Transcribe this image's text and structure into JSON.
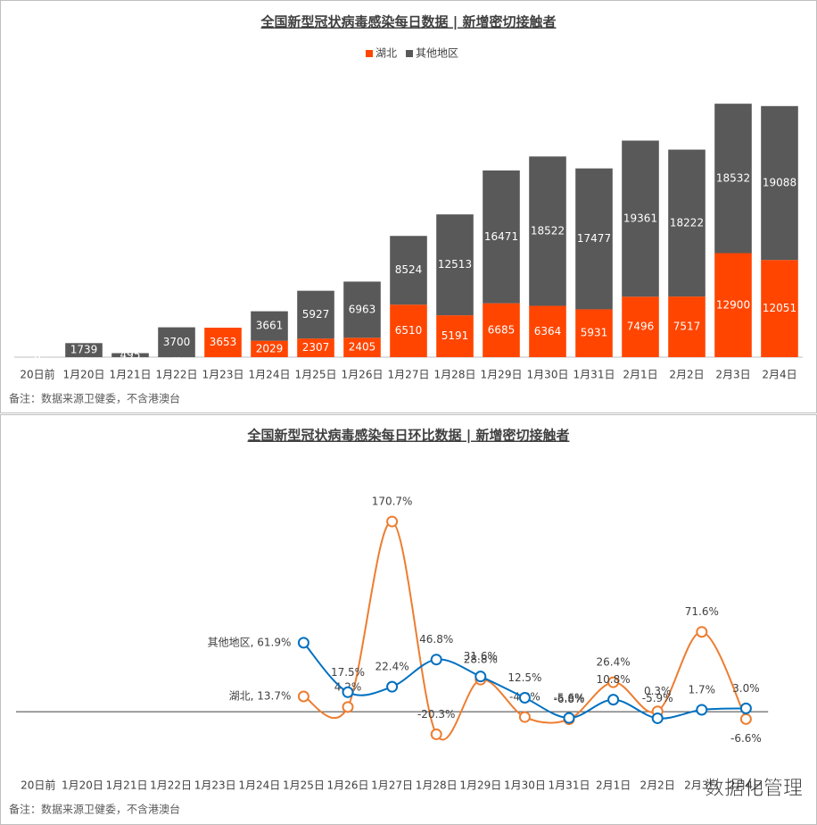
{
  "chart_data": [
    {
      "type": "bar",
      "title": "全国新型冠状病毒感染每日数据 | 新增密切接触者",
      "categories": [
        "20日前",
        "1月20日",
        "1月21日",
        "1月22日",
        "1月23日",
        "1月24日",
        "1月25日",
        "1月26日",
        "1月27日",
        "1月28日",
        "1月29日",
        "1月30日",
        "1月31日",
        "2月1日",
        "2月2日",
        "2月3日",
        "2月4日"
      ],
      "series": [
        {
          "name": "湖北",
          "color": "#ff4500",
          "values": [
            0,
            0,
            0,
            0,
            3653,
            2029,
            2307,
            2405,
            6510,
            5191,
            6685,
            6364,
            5931,
            7496,
            7517,
            12900,
            12051
          ]
        },
        {
          "name": "其他地区",
          "color": "#595959",
          "values": [
            0,
            1739,
            495,
            3700,
            null,
            3661,
            5927,
            6963,
            8524,
            12513,
            16471,
            18522,
            17477,
            19361,
            18222,
            18532,
            19088
          ]
        }
      ],
      "ylim": [
        0,
        33000
      ],
      "legend": "top",
      "note": "备注：数据来源卫健委，不含港澳台"
    },
    {
      "type": "line",
      "title": "全国新型冠状病毒感染每日环比数据 | 新增密切接触者",
      "categories": [
        "20日前",
        "1月20日",
        "1月21日",
        "1月22日",
        "1月23日",
        "1月24日",
        "1月25日",
        "1月26日",
        "1月27日",
        "1月28日",
        "1月29日",
        "1月30日",
        "1月31日",
        "2月1日",
        "2月2日",
        "2月3日",
        "2月4日"
      ],
      "series": [
        {
          "color": "#ed7d31",
          "values": [
            null,
            null,
            null,
            null,
            null,
            null,
            13.7,
            4.2,
            170.7,
            -20.3,
            28.8,
            -4.8,
            -6.8,
            26.4,
            0.3,
            71.6,
            -6.6
          ],
          "value_labels": [
            null,
            null,
            null,
            null,
            null,
            null,
            "湖北, 13.7%",
            "4.2%",
            "170.7%",
            "-20.3%",
            "28.8%",
            "-4.8%",
            "-6.8%",
            "26.4%",
            "0.3%",
            "71.6%",
            "-6.6%"
          ]
        },
        {
          "color": "#0070c0",
          "values": [
            null,
            null,
            null,
            null,
            null,
            null,
            61.9,
            17.5,
            22.4,
            46.8,
            31.6,
            12.5,
            -5.6,
            10.8,
            -5.9,
            1.7,
            3.0
          ],
          "value_labels": [
            null,
            null,
            null,
            null,
            null,
            null,
            "其他地区, 61.9%",
            "17.5%",
            "22.4%",
            "46.8%",
            "31.6%",
            "12.5%",
            "-5.6%",
            "10.8%",
            "-5.9%",
            "1.7%",
            "3.0%"
          ]
        }
      ],
      "ylim": [
        -50,
        200
      ],
      "note": "备注：数据来源卫健委，不含港澳台"
    }
  ],
  "watermark": "数据化管理"
}
